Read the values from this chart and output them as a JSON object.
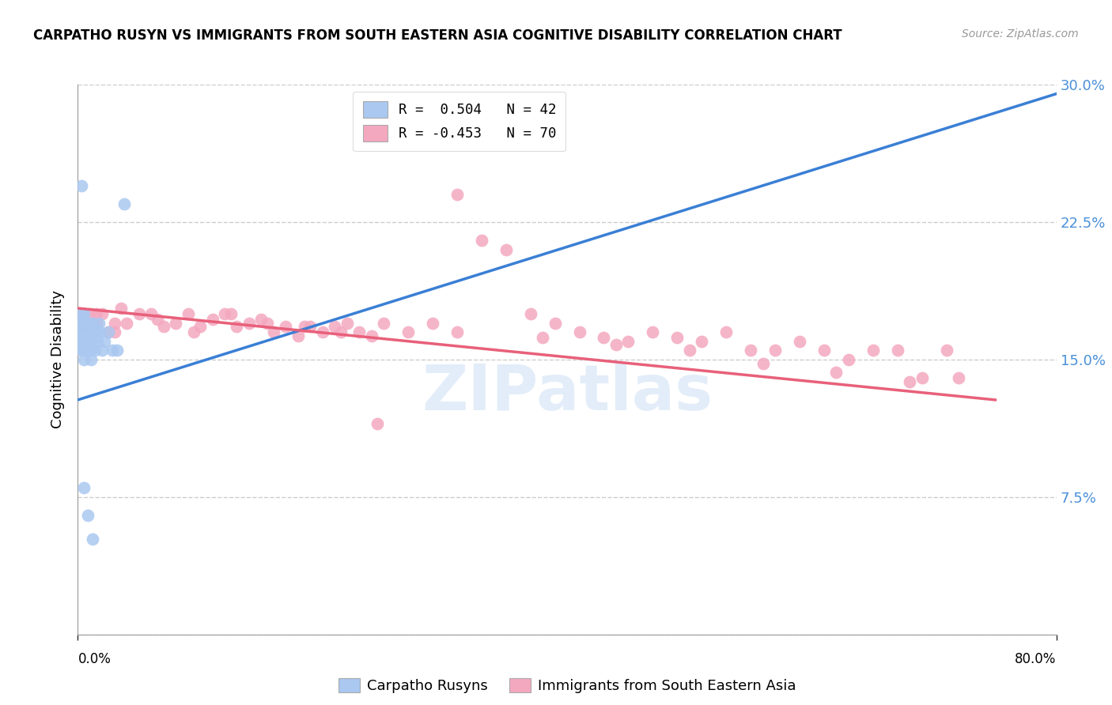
{
  "title": "CARPATHO RUSYN VS IMMIGRANTS FROM SOUTH EASTERN ASIA COGNITIVE DISABILITY CORRELATION CHART",
  "source": "Source: ZipAtlas.com",
  "ylabel": "Cognitive Disability",
  "xmin": 0.0,
  "xmax": 0.8,
  "ymin": 0.0,
  "ymax": 0.3,
  "yticks": [
    0.0,
    0.075,
    0.15,
    0.225,
    0.3
  ],
  "legend_blue_label": "R =  0.504   N = 42",
  "legend_pink_label": "R = -0.453   N = 70",
  "blue_color": "#aac8f0",
  "pink_color": "#f4a8c0",
  "blue_line_color": "#3a7fd5",
  "pink_line_color": "#e8607a",
  "watermark": "ZIPatlas",
  "blue_trendline_x": [
    0.0,
    0.8
  ],
  "blue_trendline_y": [
    0.128,
    0.295
  ],
  "pink_trendline_x": [
    0.0,
    0.75
  ],
  "pink_trendline_y": [
    0.178,
    0.128
  ],
  "grid_color": "#cccccc",
  "background_color": "#ffffff",
  "blue_scatter_x": [
    0.002,
    0.002,
    0.003,
    0.003,
    0.003,
    0.004,
    0.004,
    0.004,
    0.004,
    0.005,
    0.005,
    0.005,
    0.006,
    0.006,
    0.007,
    0.007,
    0.008,
    0.008,
    0.009,
    0.009,
    0.01,
    0.01,
    0.011,
    0.011,
    0.012,
    0.012,
    0.013,
    0.014,
    0.015,
    0.016,
    0.017,
    0.018,
    0.02,
    0.022,
    0.025,
    0.028,
    0.032,
    0.038,
    0.005,
    0.008,
    0.003,
    0.012
  ],
  "blue_scatter_y": [
    0.17,
    0.165,
    0.175,
    0.16,
    0.155,
    0.17,
    0.165,
    0.16,
    0.155,
    0.175,
    0.165,
    0.15,
    0.17,
    0.16,
    0.165,
    0.155,
    0.17,
    0.155,
    0.165,
    0.16,
    0.17,
    0.155,
    0.165,
    0.15,
    0.17,
    0.16,
    0.165,
    0.155,
    0.165,
    0.16,
    0.17,
    0.165,
    0.155,
    0.16,
    0.165,
    0.155,
    0.155,
    0.235,
    0.08,
    0.065,
    0.245,
    0.052
  ],
  "pink_scatter_x": [
    0.005,
    0.01,
    0.015,
    0.02,
    0.025,
    0.03,
    0.04,
    0.05,
    0.06,
    0.07,
    0.08,
    0.09,
    0.1,
    0.11,
    0.12,
    0.13,
    0.14,
    0.15,
    0.16,
    0.17,
    0.18,
    0.19,
    0.2,
    0.21,
    0.22,
    0.23,
    0.24,
    0.25,
    0.27,
    0.29,
    0.31,
    0.33,
    0.35,
    0.37,
    0.39,
    0.41,
    0.43,
    0.45,
    0.47,
    0.49,
    0.51,
    0.53,
    0.55,
    0.57,
    0.59,
    0.61,
    0.63,
    0.65,
    0.67,
    0.69,
    0.71,
    0.015,
    0.035,
    0.065,
    0.095,
    0.125,
    0.155,
    0.185,
    0.215,
    0.245,
    0.31,
    0.38,
    0.44,
    0.5,
    0.56,
    0.62,
    0.68,
    0.72,
    0.005,
    0.03
  ],
  "pink_scatter_y": [
    0.175,
    0.175,
    0.17,
    0.175,
    0.165,
    0.17,
    0.17,
    0.175,
    0.175,
    0.168,
    0.17,
    0.175,
    0.168,
    0.172,
    0.175,
    0.168,
    0.17,
    0.172,
    0.165,
    0.168,
    0.163,
    0.168,
    0.165,
    0.168,
    0.17,
    0.165,
    0.163,
    0.17,
    0.165,
    0.17,
    0.24,
    0.215,
    0.21,
    0.175,
    0.17,
    0.165,
    0.162,
    0.16,
    0.165,
    0.162,
    0.16,
    0.165,
    0.155,
    0.155,
    0.16,
    0.155,
    0.15,
    0.155,
    0.155,
    0.14,
    0.155,
    0.175,
    0.178,
    0.172,
    0.165,
    0.175,
    0.17,
    0.168,
    0.165,
    0.115,
    0.165,
    0.162,
    0.158,
    0.155,
    0.148,
    0.143,
    0.138,
    0.14,
    0.168,
    0.165
  ]
}
